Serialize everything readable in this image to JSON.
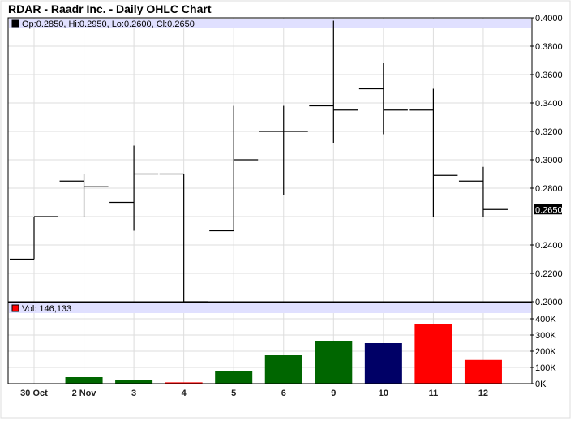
{
  "chart_data": [
    {
      "type": "ohlc",
      "title": "RDAR - Raadr Inc. - Daily OHLC Chart",
      "legend": "Op:0.2850, Hi:0.2950, Lo:0.2600, Cl:0.2650",
      "legend_color": "#000000",
      "categories": [
        "30 Oct",
        "2 Nov",
        "3",
        "4",
        "5",
        "6",
        "9",
        "10",
        "11",
        "12"
      ],
      "open": [
        0.23,
        0.285,
        0.27,
        0.29,
        0.25,
        0.32,
        0.338,
        0.35,
        0.335,
        0.285
      ],
      "high": [
        0.26,
        0.29,
        0.31,
        0.29,
        0.338,
        0.338,
        0.398,
        0.368,
        0.35,
        0.295
      ],
      "low": [
        0.23,
        0.26,
        0.25,
        0.2,
        0.25,
        0.275,
        0.312,
        0.318,
        0.26,
        0.26
      ],
      "close": [
        0.26,
        0.281,
        0.29,
        0.2,
        0.3,
        0.32,
        0.335,
        0.335,
        0.289,
        0.265
      ],
      "ylim": [
        0.2,
        0.4
      ],
      "yticks": [
        "0.4000",
        "0.3800",
        "0.3600",
        "0.3400",
        "0.3200",
        "0.3000",
        "0.2800",
        "0.2400",
        "0.2200",
        "0.2000"
      ],
      "ytick_values": [
        0.4,
        0.38,
        0.36,
        0.34,
        0.32,
        0.3,
        0.28,
        0.24,
        0.22,
        0.2
      ],
      "last_price_label": "0.2650",
      "last_price": 0.265,
      "grid": true
    },
    {
      "type": "bar",
      "legend": "Vol: 146,133",
      "legend_color": "#ff0000",
      "categories": [
        "30 Oct",
        "2 Nov",
        "3",
        "4",
        "5",
        "6",
        "9",
        "10",
        "11",
        "12"
      ],
      "values": [
        0,
        40000,
        20000,
        8000,
        75000,
        175000,
        260000,
        250000,
        370000,
        146133
      ],
      "colors": [
        "#006600",
        "#006600",
        "#006600",
        "#ff0000",
        "#006600",
        "#006600",
        "#006600",
        "#000066",
        "#ff0000",
        "#ff0000"
      ],
      "ylim": [
        0,
        400000
      ],
      "yticks": [
        "400K",
        "300K",
        "200K",
        "100K",
        "0K"
      ],
      "ytick_values": [
        400000,
        300000,
        200000,
        100000,
        0
      ],
      "grid": true
    }
  ]
}
